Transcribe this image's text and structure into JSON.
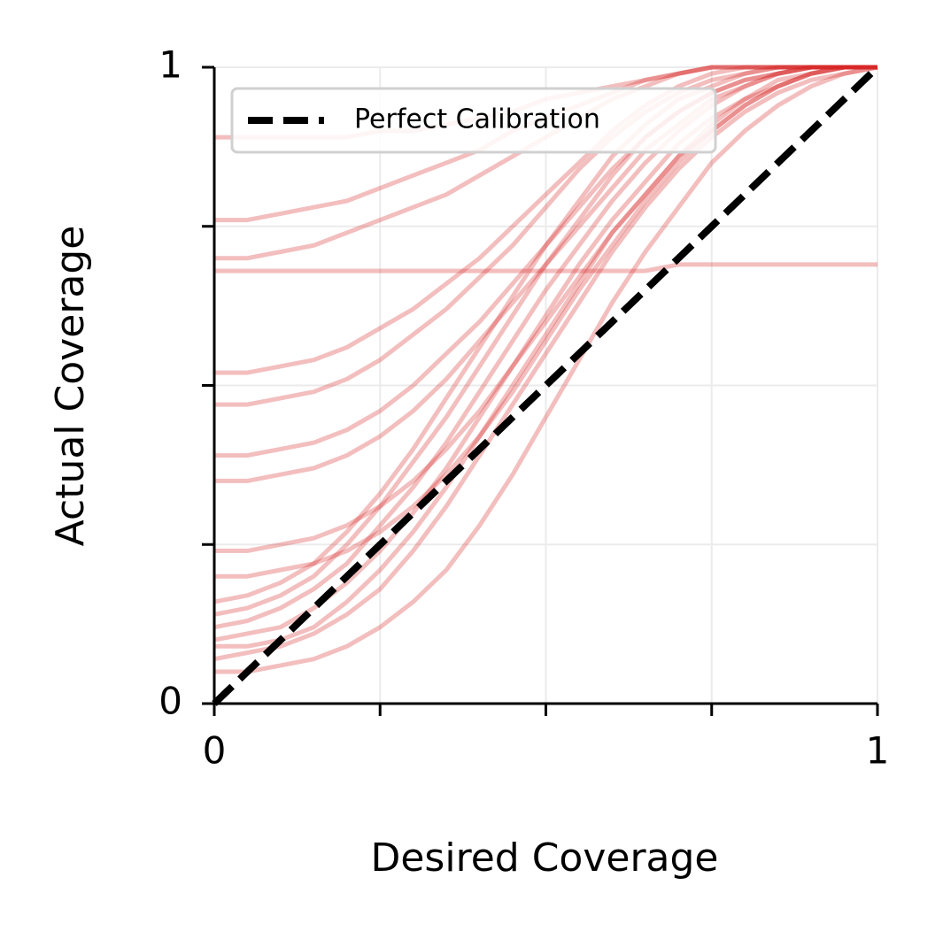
{
  "chart_data": {
    "type": "line",
    "xlabel": "Desired Coverage",
    "ylabel": "Actual Coverage",
    "xlim": [
      0,
      1
    ],
    "ylim": [
      0,
      1
    ],
    "xticks": [
      0,
      1
    ],
    "yticks": [
      0,
      1
    ],
    "xticks_unlabeled": [
      0.25,
      0.5,
      0.75
    ],
    "yticks_unlabeled": [
      0.25,
      0.5,
      0.75
    ],
    "grid": true,
    "legend": "upper left",
    "alpha": 0.3,
    "x": [
      0,
      0.05,
      0.1,
      0.15,
      0.2,
      0.25,
      0.3,
      0.35,
      0.4,
      0.45,
      0.5,
      0.55,
      0.6,
      0.65,
      0.7,
      0.75,
      0.8,
      0.85,
      0.9,
      0.95,
      1
    ],
    "series": [
      {
        "color": "#d62728",
        "values": [
          0.05,
          0.05,
          0.06,
          0.07,
          0.09,
          0.12,
          0.16,
          0.21,
          0.28,
          0.36,
          0.45,
          0.54,
          0.63,
          0.71,
          0.78,
          0.85,
          0.9,
          0.94,
          0.97,
          0.99,
          1
        ]
      },
      {
        "color": "#d62728",
        "values": [
          0.07,
          0.08,
          0.09,
          0.11,
          0.14,
          0.18,
          0.24,
          0.31,
          0.39,
          0.47,
          0.55,
          0.63,
          0.71,
          0.78,
          0.84,
          0.89,
          0.93,
          0.96,
          0.98,
          0.99,
          1
        ]
      },
      {
        "color": "#d62728",
        "values": [
          0.1,
          0.11,
          0.12,
          0.15,
          0.19,
          0.24,
          0.3,
          0.37,
          0.45,
          0.53,
          0.61,
          0.69,
          0.76,
          0.82,
          0.88,
          0.92,
          0.95,
          0.98,
          0.99,
          1,
          1
        ]
      },
      {
        "color": "#d62728",
        "values": [
          0.12,
          0.13,
          0.15,
          0.18,
          0.22,
          0.28,
          0.34,
          0.41,
          0.49,
          0.57,
          0.65,
          0.72,
          0.79,
          0.85,
          0.9,
          0.94,
          0.97,
          0.99,
          1,
          1,
          1
        ]
      },
      {
        "color": "#d62728",
        "values": [
          0.14,
          0.15,
          0.17,
          0.2,
          0.25,
          0.31,
          0.38,
          0.45,
          0.53,
          0.61,
          0.69,
          0.76,
          0.83,
          0.89,
          0.93,
          0.96,
          0.98,
          0.99,
          1,
          1,
          1
        ]
      },
      {
        "color": "#d62728",
        "values": [
          0.16,
          0.17,
          0.19,
          0.22,
          0.27,
          0.33,
          0.4,
          0.48,
          0.56,
          0.64,
          0.72,
          0.79,
          0.86,
          0.91,
          0.95,
          0.97,
          0.99,
          1,
          1,
          1,
          1
        ]
      },
      {
        "color": "#d62728",
        "values": [
          0.09,
          0.09,
          0.1,
          0.12,
          0.16,
          0.21,
          0.27,
          0.34,
          0.42,
          0.5,
          0.58,
          0.66,
          0.74,
          0.8,
          0.86,
          0.9,
          0.94,
          0.97,
          0.99,
          1,
          1
        ]
      },
      {
        "color": "#d62728",
        "values": [
          0.89,
          0.89,
          0.89,
          0.89,
          0.89,
          0.9,
          0.9,
          0.91,
          0.92,
          0.93,
          0.95,
          0.96,
          0.97,
          0.98,
          0.99,
          1,
          1,
          1,
          1,
          1,
          1
        ]
      },
      {
        "color": "#d62728",
        "values": [
          0.76,
          0.76,
          0.77,
          0.78,
          0.79,
          0.81,
          0.83,
          0.85,
          0.87,
          0.9,
          0.92,
          0.94,
          0.96,
          0.98,
          0.99,
          1,
          1,
          1,
          1,
          1,
          1
        ]
      },
      {
        "color": "#d62728",
        "values": [
          0.68,
          0.68,
          0.68,
          0.68,
          0.68,
          0.68,
          0.68,
          0.68,
          0.68,
          0.68,
          0.68,
          0.68,
          0.68,
          0.68,
          0.69,
          0.69,
          0.69,
          0.69,
          0.69,
          0.69,
          0.69
        ]
      },
      {
        "color": "#d62728",
        "values": [
          0.7,
          0.7,
          0.71,
          0.72,
          0.74,
          0.76,
          0.78,
          0.8,
          0.83,
          0.86,
          0.89,
          0.92,
          0.95,
          0.97,
          0.99,
          1,
          1,
          1,
          1,
          1,
          1
        ]
      },
      {
        "color": "#d62728",
        "values": [
          0.52,
          0.52,
          0.53,
          0.54,
          0.56,
          0.59,
          0.62,
          0.66,
          0.7,
          0.75,
          0.8,
          0.85,
          0.9,
          0.94,
          0.97,
          0.99,
          1,
          1,
          1,
          1,
          1
        ]
      },
      {
        "color": "#d62728",
        "values": [
          0.47,
          0.47,
          0.48,
          0.49,
          0.51,
          0.54,
          0.58,
          0.62,
          0.67,
          0.72,
          0.78,
          0.84,
          0.89,
          0.93,
          0.96,
          0.98,
          0.99,
          1,
          1,
          1,
          1
        ]
      },
      {
        "color": "#d62728",
        "values": [
          0.39,
          0.39,
          0.4,
          0.41,
          0.43,
          0.46,
          0.5,
          0.55,
          0.6,
          0.66,
          0.72,
          0.78,
          0.84,
          0.89,
          0.93,
          0.96,
          0.98,
          0.99,
          1,
          1,
          1
        ]
      },
      {
        "color": "#d62728",
        "values": [
          0.35,
          0.35,
          0.36,
          0.37,
          0.39,
          0.42,
          0.46,
          0.51,
          0.57,
          0.63,
          0.69,
          0.75,
          0.81,
          0.87,
          0.91,
          0.95,
          0.97,
          0.99,
          1,
          1,
          1
        ]
      },
      {
        "color": "#d62728",
        "values": [
          0.24,
          0.24,
          0.25,
          0.26,
          0.28,
          0.31,
          0.35,
          0.4,
          0.46,
          0.53,
          0.6,
          0.67,
          0.74,
          0.8,
          0.86,
          0.91,
          0.95,
          0.97,
          0.99,
          1,
          1
        ]
      },
      {
        "color": "#d62728",
        "values": [
          0.2,
          0.2,
          0.21,
          0.22,
          0.24,
          0.27,
          0.31,
          0.36,
          0.42,
          0.49,
          0.57,
          0.65,
          0.72,
          0.79,
          0.85,
          0.9,
          0.94,
          0.97,
          0.99,
          1,
          1
        ]
      },
      {
        "name": "Perfect Calibration",
        "color": "#000000",
        "linestyle": "dashed",
        "values": [
          0,
          0.05,
          0.1,
          0.15,
          0.2,
          0.25,
          0.3,
          0.35,
          0.4,
          0.45,
          0.5,
          0.55,
          0.6,
          0.65,
          0.7,
          0.75,
          0.8,
          0.85,
          0.9,
          0.95,
          1
        ]
      }
    ]
  }
}
